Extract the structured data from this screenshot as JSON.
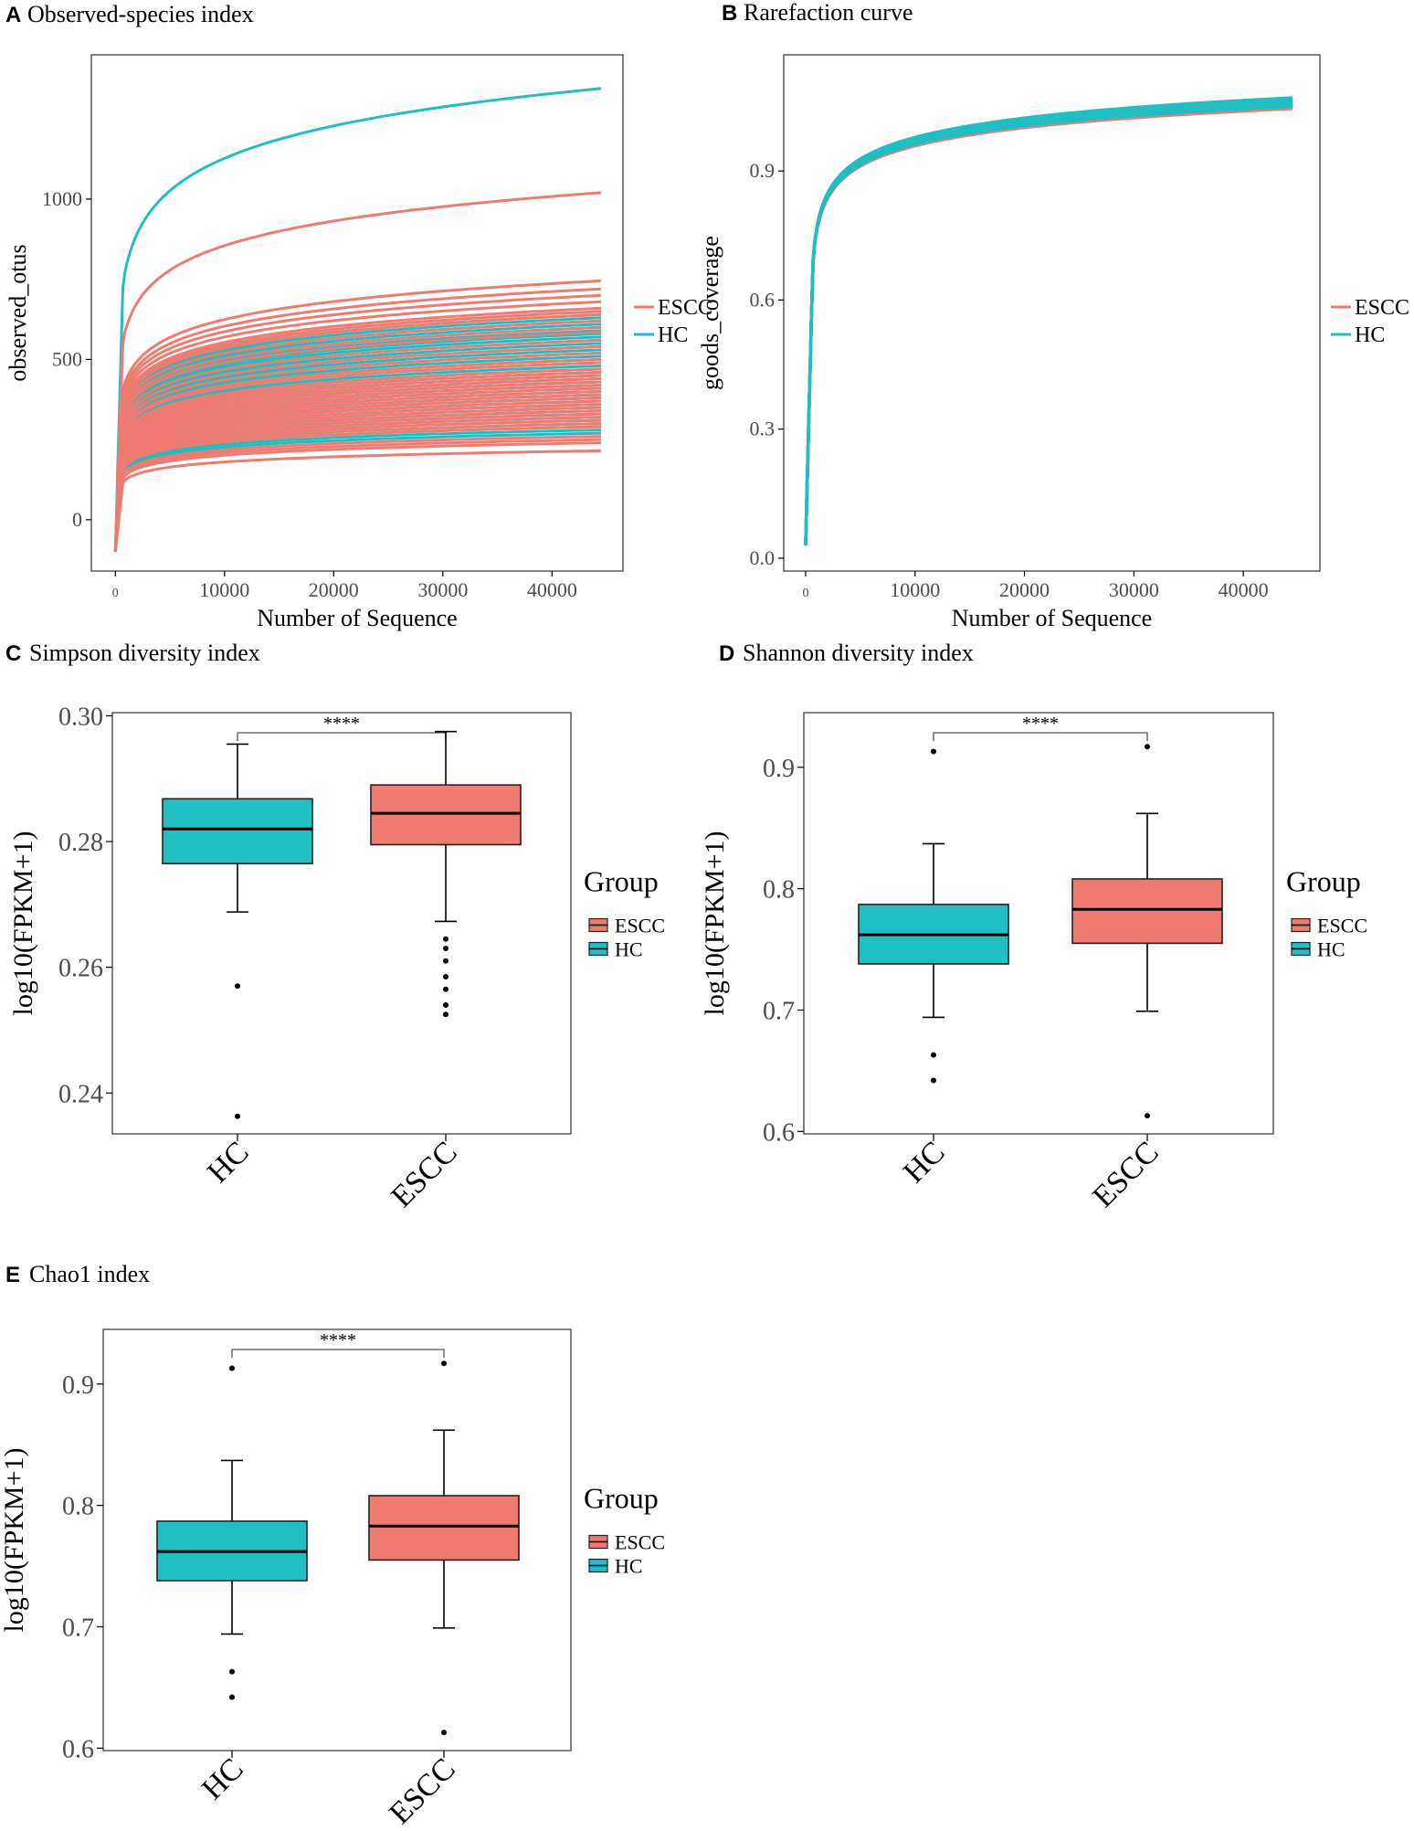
{
  "colors": {
    "ESCC": "#F07B71",
    "HC": "#1FBFC3",
    "axis": "#000000",
    "frame": "#333333",
    "tick_text": "#4d4d4d"
  },
  "chart_data": [
    {
      "id": "A",
      "panel_label": "A",
      "type": "line",
      "title": "Observed-species index",
      "xlabel": "Number of Sequence",
      "ylabel": "observed_otus",
      "xlim": [
        -2200,
        46500
      ],
      "ylim": [
        -160,
        1450
      ],
      "xticks": [
        0,
        10000,
        20000,
        30000,
        40000
      ],
      "xtick_labels": [
        "0",
        "10000",
        "20000",
        "30000",
        "40000"
      ],
      "yticks": [
        0,
        500,
        1000
      ],
      "ytick_labels": [
        "0",
        "500",
        "1000"
      ],
      "legend": {
        "title": "",
        "position": "right",
        "entries": [
          "ESCC",
          "HC"
        ]
      },
      "series": [
        {
          "name": "HC",
          "final_values": [
            1345,
            640,
            630,
            620,
            610,
            600,
            590,
            580,
            570,
            560,
            550,
            540,
            530,
            520,
            510,
            500,
            490,
            480,
            470,
            460,
            450,
            440,
            430,
            420,
            410,
            400,
            390,
            380,
            370,
            360,
            350,
            340,
            330,
            320,
            310,
            300,
            290,
            280,
            270
          ]
        },
        {
          "name": "ESCC",
          "final_values": [
            1020,
            745,
            720,
            700,
            680,
            660,
            650,
            640,
            620,
            600,
            585,
            560,
            540,
            520,
            500,
            490,
            470,
            460,
            450,
            440,
            430,
            420,
            410,
            400,
            390,
            380,
            370,
            360,
            350,
            340,
            330,
            320,
            310,
            300,
            290,
            260,
            250,
            240,
            215
          ]
        }
      ]
    },
    {
      "id": "B",
      "panel_label": "B",
      "type": "line",
      "title": "Rarefaction curve",
      "xlabel": "Number of Sequence",
      "ylabel": "goods_coverage",
      "xlim": [
        -2000,
        47000
      ],
      "ylim": [
        -0.03,
        1.17
      ],
      "xticks": [
        0,
        10000,
        20000,
        30000,
        40000
      ],
      "xtick_labels": [
        "0",
        "10000",
        "20000",
        "30000",
        "40000"
      ],
      "yticks": [
        0.0,
        0.3,
        0.6,
        0.9
      ],
      "ytick_labels": [
        "0.0",
        "0.3",
        "0.6",
        "0.9"
      ],
      "legend": {
        "title": "",
        "position": "right",
        "entries": [
          "ESCC",
          "HC"
        ]
      },
      "series": [
        {
          "name": "ESCC",
          "final_values": [
            1.045,
            1.05,
            1.055,
            1.06,
            1.065
          ]
        },
        {
          "name": "HC",
          "final_values": [
            1.05,
            1.055,
            1.06,
            1.065,
            1.07
          ]
        }
      ]
    },
    {
      "id": "C",
      "panel_label": "C",
      "type": "box",
      "title": "Simpson diversity index",
      "xlabel": "",
      "ylabel": "log10(FPKM+1)",
      "ylim": [
        0.2335,
        0.3005
      ],
      "yticks": [
        0.24,
        0.26,
        0.28,
        0.3
      ],
      "ytick_labels": [
        "0.24",
        "0.26",
        "0.28",
        "0.30"
      ],
      "categories": [
        "HC",
        "ESCC"
      ],
      "significance": "****",
      "legend": {
        "title": "Group",
        "position": "right",
        "entries": [
          "ESCC",
          "HC"
        ]
      },
      "boxes": [
        {
          "group": "HC",
          "whisker_low": 0.2688,
          "q1": 0.2765,
          "median": 0.282,
          "q3": 0.2868,
          "whisker_high": 0.2955,
          "outliers": [
            0.257,
            0.2363
          ]
        },
        {
          "group": "ESCC",
          "whisker_low": 0.2673,
          "q1": 0.2795,
          "median": 0.2845,
          "q3": 0.289,
          "whisker_high": 0.2975,
          "outliers": [
            0.2645,
            0.263,
            0.261,
            0.2585,
            0.2565,
            0.254,
            0.2525
          ]
        }
      ]
    },
    {
      "id": "D",
      "panel_label": "D",
      "type": "box",
      "title": "Shannon diversity index",
      "xlabel": "",
      "ylabel": "log10(FPKM+1)",
      "ylim": [
        0.598,
        0.945
      ],
      "yticks": [
        0.6,
        0.7,
        0.8,
        0.9
      ],
      "ytick_labels": [
        "0.6",
        "0.7",
        "0.8",
        "0.9"
      ],
      "categories": [
        "HC",
        "ESCC"
      ],
      "significance": "****",
      "legend": {
        "title": "Group",
        "position": "right",
        "entries": [
          "ESCC",
          "HC"
        ]
      },
      "boxes": [
        {
          "group": "HC",
          "whisker_low": 0.694,
          "q1": 0.738,
          "median": 0.762,
          "q3": 0.787,
          "whisker_high": 0.837,
          "outliers": [
            0.913,
            0.663,
            0.642
          ]
        },
        {
          "group": "ESCC",
          "whisker_low": 0.699,
          "q1": 0.755,
          "median": 0.783,
          "q3": 0.808,
          "whisker_high": 0.862,
          "outliers": [
            0.917,
            0.613
          ]
        }
      ]
    },
    {
      "id": "E",
      "panel_label": "E",
      "type": "box",
      "title": "Chao1 index",
      "xlabel": "",
      "ylabel": "log10(FPKM+1)",
      "ylim": [
        0.598,
        0.945
      ],
      "yticks": [
        0.6,
        0.7,
        0.8,
        0.9
      ],
      "ytick_labels": [
        "0.6",
        "0.7",
        "0.8",
        "0.9"
      ],
      "categories": [
        "HC",
        "ESCC"
      ],
      "significance": "****",
      "legend": {
        "title": "Group",
        "position": "right",
        "entries": [
          "ESCC",
          "HC"
        ]
      },
      "boxes": [
        {
          "group": "HC",
          "whisker_low": 0.694,
          "q1": 0.738,
          "median": 0.762,
          "q3": 0.787,
          "whisker_high": 0.837,
          "outliers": [
            0.913,
            0.663,
            0.642
          ]
        },
        {
          "group": "ESCC",
          "whisker_low": 0.699,
          "q1": 0.755,
          "median": 0.783,
          "q3": 0.808,
          "whisker_high": 0.862,
          "outliers": [
            0.917,
            0.613
          ]
        }
      ]
    }
  ]
}
